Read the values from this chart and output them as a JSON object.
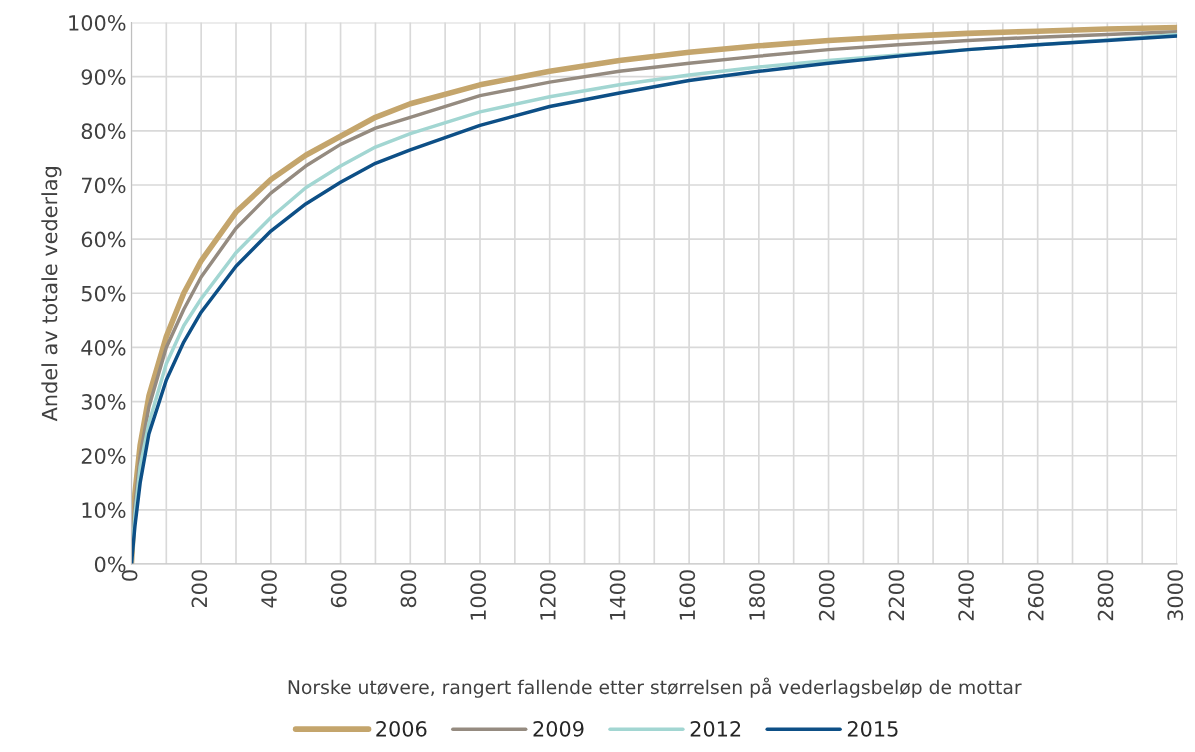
{
  "chart_data": {
    "type": "line",
    "xlabel": "Norske utøvere, rangert fallende etter størrelsen på vederlagsbeløp de mottar",
    "ylabel": "Andel av totale vederlag",
    "x": [
      0,
      10,
      25,
      50,
      100,
      150,
      200,
      300,
      400,
      500,
      600,
      700,
      800,
      1000,
      1200,
      1400,
      1600,
      1800,
      2000,
      2200,
      2400,
      2600,
      2800,
      3000
    ],
    "series": [
      {
        "name": "2006",
        "color": "#c4a56c",
        "values": [
          0,
          13,
          22,
          31,
          42,
          50,
          56,
          65,
          71,
          75.5,
          79,
          82.5,
          85,
          88.5,
          91,
          93,
          94.5,
          95.7,
          96.7,
          97.4,
          98,
          98.4,
          98.8,
          99.1
        ]
      },
      {
        "name": "2009",
        "color": "#958b80",
        "values": [
          0,
          11,
          20,
          29,
          40,
          47,
          53,
          62,
          68.5,
          73.5,
          77.5,
          80.5,
          82.5,
          86.5,
          89,
          91,
          92.5,
          93.8,
          95,
          95.9,
          96.7,
          97.3,
          97.8,
          98.3
        ]
      },
      {
        "name": "2012",
        "color": "#a2d6d2",
        "values": [
          0,
          9,
          18,
          26,
          37,
          44,
          49,
          57.5,
          64,
          69.5,
          73.5,
          77,
          79.5,
          83.5,
          86.3,
          88.5,
          90.3,
          91.8,
          93,
          94,
          95,
          95.9,
          96.8,
          97.8
        ]
      },
      {
        "name": "2015",
        "color": "#0d4f86",
        "values": [
          0,
          7,
          15,
          24,
          34,
          41,
          46.5,
          55,
          61.5,
          66.5,
          70.5,
          74,
          76.5,
          81,
          84.5,
          87,
          89.3,
          91,
          92.5,
          93.8,
          95,
          95.9,
          96.7,
          97.5
        ]
      }
    ],
    "xlim": [
      0,
      3000
    ],
    "xticks": [
      0,
      {
        "value": 100,
        "label": null
      },
      200,
      {
        "value": 300,
        "label": null
      },
      400,
      {
        "value": 500,
        "label": null
      },
      600,
      {
        "value": 700,
        "label": null
      },
      800,
      {
        "value": 900,
        "label": null
      },
      1000,
      {
        "value": 1100,
        "label": null
      },
      1200,
      {
        "value": 1300,
        "label": null
      },
      1400,
      {
        "value": 1500,
        "label": null
      },
      1600,
      {
        "value": 1700,
        "label": null
      },
      1800,
      {
        "value": 1900,
        "label": null
      },
      2000,
      {
        "value": 2100,
        "label": null
      },
      2200,
      {
        "value": 2300,
        "label": null
      },
      2400,
      {
        "value": 2500,
        "label": null
      },
      2600,
      {
        "value": 2700,
        "label": null
      },
      2800,
      {
        "value": 2900,
        "label": null
      },
      3000
    ],
    "ylim": [
      0,
      100
    ],
    "yticks": [
      {
        "value": 0,
        "label": "0%"
      },
      {
        "value": 10,
        "label": "10%"
      },
      {
        "value": 20,
        "label": "20%"
      },
      {
        "value": 30,
        "label": "30%"
      },
      {
        "value": 40,
        "label": "40%"
      },
      {
        "value": 50,
        "label": "50%"
      },
      {
        "value": 60,
        "label": "60%"
      },
      {
        "value": 70,
        "label": "70%"
      },
      {
        "value": 80,
        "label": "80%"
      },
      {
        "value": 90,
        "label": "90%"
      },
      {
        "value": 100,
        "label": "100%"
      }
    ],
    "grid": true,
    "legend": "bottom",
    "marker": "none",
    "line_style": "solid"
  }
}
